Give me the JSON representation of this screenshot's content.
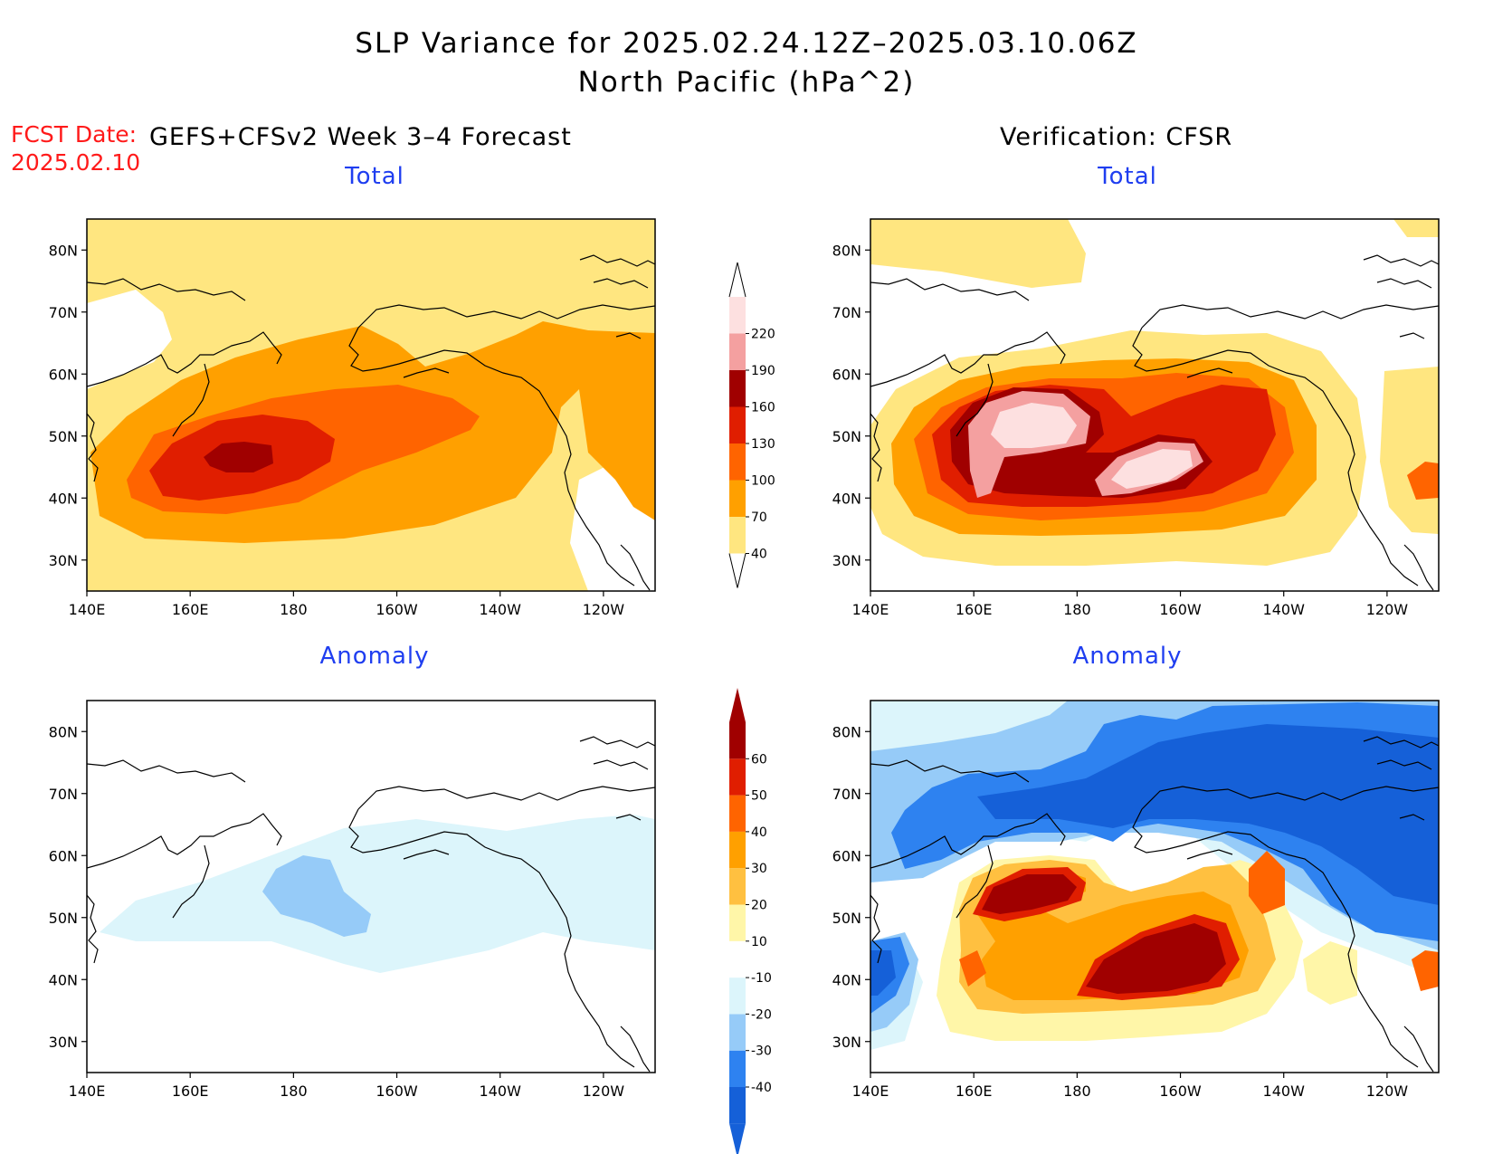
{
  "title": {
    "line1": "SLP Variance for 2025.02.24.12Z–2025.03.10.06Z",
    "line2": "North Pacific (hPa^2)"
  },
  "fcst": {
    "label": "FCST Date:",
    "date": "2025.02.10"
  },
  "headers": {
    "left": "GEFS+CFSv2 Week 3–4 Forecast",
    "right": "Verification: CFSR"
  },
  "panels": {
    "top_left_title": "Total",
    "top_right_title": "Total",
    "bottom_left_title": "Anomaly",
    "bottom_right_title": "Anomaly"
  },
  "axes": {
    "lat_ticks": [
      "80N",
      "70N",
      "60N",
      "50N",
      "40N",
      "30N"
    ],
    "lon_ticks": [
      "140E",
      "160E",
      "180",
      "160W",
      "140W",
      "120W"
    ]
  },
  "colorbars": {
    "total": {
      "labels": [
        "40",
        "70",
        "100",
        "130",
        "160",
        "190",
        "220"
      ],
      "colors": [
        "#ffe680",
        "#ffa000",
        "#ff6400",
        "#e01e00",
        "#a00000",
        "#f4a0a0",
        "#fde0e0"
      ]
    },
    "anomaly": {
      "labels": [
        "-40",
        "-30",
        "-20",
        "-10",
        "10",
        "20",
        "30",
        "40",
        "50",
        "60"
      ],
      "colors": [
        "#1560d8",
        "#2e82f0",
        "#96cbf8",
        "#dcf5fb",
        "#ffffff",
        "#fff6a8",
        "#ffc040",
        "#ffa000",
        "#ff6400",
        "#e01e00",
        "#a00000"
      ]
    }
  },
  "chart_data": [
    {
      "type": "heatmap",
      "title": "Total",
      "source": "GEFS+CFSv2 Week 3–4 Forecast",
      "xlabel": "",
      "ylabel": "",
      "xlim": [
        "140E",
        "110W"
      ],
      "ylim": [
        "25N",
        "85N"
      ],
      "levels": [
        40,
        70,
        100,
        130,
        160,
        190,
        220
      ],
      "features": [
        {
          "region": "broad variance band 30N–70N",
          "value_range": [
            40,
            70
          ]
        },
        {
          "region": "main storm track 35N–60N, 145E–125W",
          "value_range": [
            70,
            100
          ]
        },
        {
          "region": "core 40N–52N, 155E–145W",
          "value_range": [
            100,
            130
          ]
        },
        {
          "region": "inner core 42N–52N, 158E–175E",
          "value_range": [
            130,
            160
          ]
        },
        {
          "region": "maximum near 46N, 170E",
          "value_range": [
            160,
            190
          ]
        }
      ]
    },
    {
      "type": "heatmap",
      "title": "Total",
      "source": "Verification: CFSR",
      "xlabel": "",
      "ylabel": "",
      "xlim": [
        "140E",
        "110W"
      ],
      "ylim": [
        "25N",
        "85N"
      ],
      "levels": [
        40,
        70,
        100,
        130,
        160,
        190,
        220
      ],
      "features": [
        {
          "region": "ridge 78N–85N, 140E–170W",
          "value_range": [
            40,
            70
          ]
        },
        {
          "region": "storm track 33N–62N, 140E–125W",
          "value_range": [
            70,
            160
          ]
        },
        {
          "region": "max west 45N–55N, 160E–178E",
          "value_range": [
            190,
            220
          ]
        },
        {
          "region": "max east 40N–48N, 175W–155W",
          "value_range": [
            220,
            240
          ]
        },
        {
          "region": "small patch near 42N, 112W",
          "value_range": [
            100,
            130
          ]
        }
      ]
    },
    {
      "type": "heatmap",
      "title": "Anomaly",
      "source": "GEFS+CFSv2 Week 3–4 Forecast",
      "xlabel": "",
      "ylabel": "",
      "xlim": [
        "140E",
        "110W"
      ],
      "ylim": [
        "25N",
        "85N"
      ],
      "levels": [
        -40,
        -30,
        -20,
        -10,
        10,
        20,
        30,
        40,
        50,
        60
      ],
      "features": [
        {
          "region": "weak negative band 40N–65N, 145E–110W",
          "value_range": [
            -20,
            -10
          ]
        },
        {
          "region": "negative center 47N–60N, 175E–170W",
          "value_range": [
            -30,
            -20
          ]
        }
      ]
    },
    {
      "type": "heatmap",
      "title": "Anomaly",
      "source": "Verification: CFSR",
      "xlabel": "",
      "ylabel": "",
      "xlim": [
        "140E",
        "110W"
      ],
      "ylim": [
        "25N",
        "85N"
      ],
      "levels": [
        -40,
        -30,
        -20,
        -10,
        10,
        20,
        30,
        40,
        50,
        60
      ],
      "features": [
        {
          "region": "strong negative north of 60N",
          "value_range": [
            -40,
            -30
          ]
        },
        {
          "region": "negative near 40N, 140E–150E",
          "value_range": [
            -40,
            -30
          ]
        },
        {
          "region": "positive max 50N–58N, 160E–178E",
          "value_range": [
            60,
            70
          ]
        },
        {
          "region": "positive max 38N–50N, 175W–150W",
          "value_range": [
            60,
            70
          ]
        },
        {
          "region": "positive ring 32N–58N, 158E–140W",
          "value_range": [
            10,
            50
          ]
        }
      ]
    }
  ]
}
